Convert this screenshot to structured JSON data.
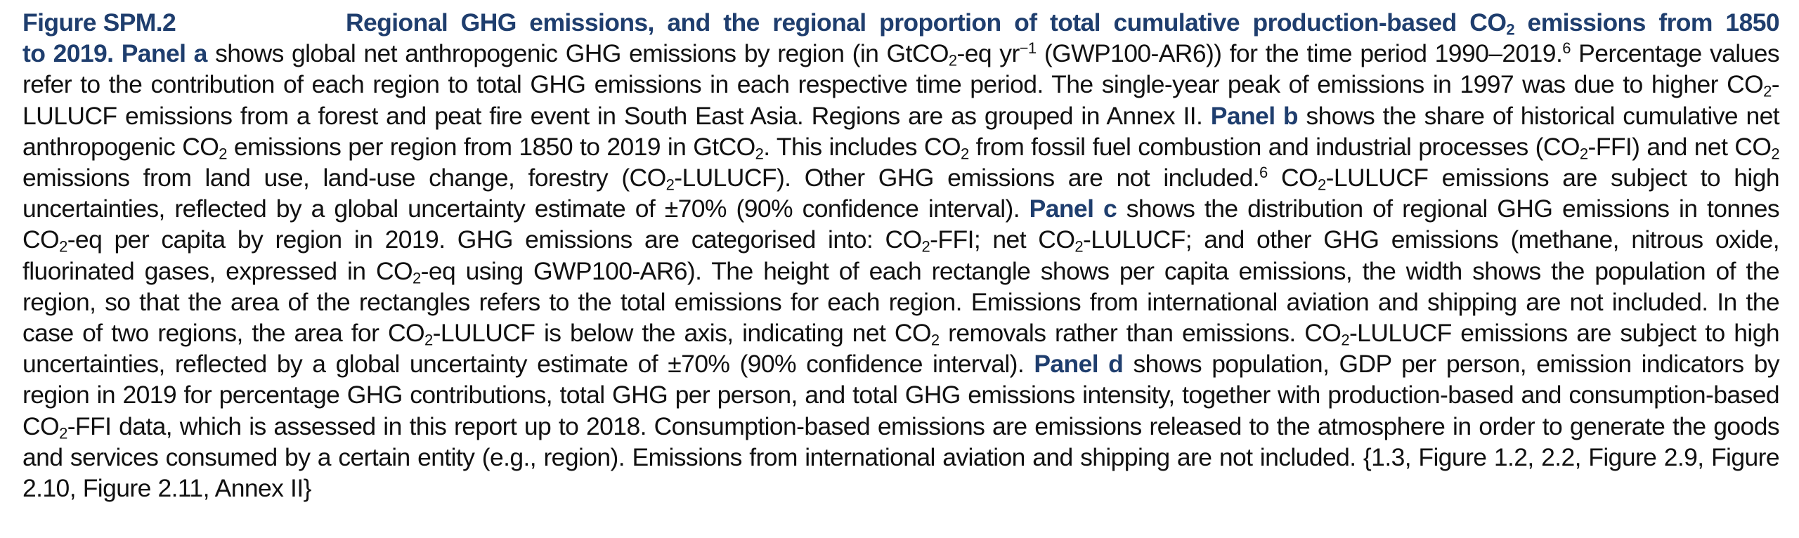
{
  "figure": {
    "label": "Figure SPM.2",
    "title": "Regional GHG emissions, and the regional proportion of total cumulative production-based CO₂ emissions from 1850 to 2019."
  },
  "caption": {
    "t1": "Regional GHG emissions, and the regional proportion of total cumulative production-based CO",
    "t2": "2",
    "t3": " emissions from 1850",
    "t4": "to 2019.",
    "pa_label": "Panel a",
    "pa1": " shows global net anthropogenic GHG emissions by region (in GtCO",
    "pa2": "2",
    "pa3": "-eq yr",
    "pa4": "−1",
    "pa5": " (GWP100-AR6)) for the time period 1990–2019.",
    "pa6": "6",
    "pa7": " Percentage values refer to the contribution of each region to total GHG emissions in each respective time period. The single-year peak of emissions in 1997 was due to higher CO",
    "pa8": "2",
    "pa9": "-LULUCF emissions from a forest and peat fire event in South East Asia. Regions are as grouped in Annex II. ",
    "pb_label": "Panel b",
    "pb1": " shows the share of historical cumulative net anthropogenic CO",
    "pb2": "2",
    "pb3": " emissions per region from 1850 to 2019 in GtCO",
    "pb4": "2",
    "pb5": ". This includes CO",
    "pb6": "2",
    "pb7": " from fossil fuel combustion and industrial processes (CO",
    "pb8": "2",
    "pb9": "-FFI) and net CO",
    "pb10": "2",
    "pb11": " emissions from land use, land-use change, forestry (CO",
    "pb12": "2",
    "pb13": "-LULUCF). Other GHG emissions are not included.",
    "pb14": "6",
    "pb15": " CO",
    "pb16": "2",
    "pb17": "-LULUCF emissions are subject to high uncertainties, reflected by a global uncertainty estimate of ±70% (90% confidence interval). ",
    "pc_label": "Panel c",
    "pc1": " shows the distribution of regional GHG emissions in tonnes CO",
    "pc2": "2",
    "pc3": "-eq per capita by region in 2019. GHG emissions are categorised into: CO",
    "pc4": "2",
    "pc5": "-FFI; net CO",
    "pc6": "2",
    "pc7": "-LULUCF; and other GHG emissions (methane, nitrous oxide, fluorinated gases, expressed in CO",
    "pc8": "2",
    "pc9": "-eq using GWP100-AR6). The height of each rectangle shows per capita emissions, the width shows the population of the region, so that the area of the rectangles refers to the total emissions for each region. Emissions from international aviation and shipping are not included. In the case of two regions, the area for CO",
    "pc10": "2",
    "pc11": "-LULUCF is below the axis, indicating net CO",
    "pc12": "2",
    "pc13": " removals rather than emissions. CO",
    "pc14": "2",
    "pc15": "-LULUCF emissions are subject to high uncertainties, reflected by a global uncertainty estimate of ±70% (90% confidence interval). ",
    "pd_label": "Panel d",
    "pd1": " shows population, GDP per person, emission indicators by region in 2019 for percentage GHG contributions, total GHG per person, and total GHG emissions intensity, together with production-based and consumption-based CO",
    "pd2": "2",
    "pd3": "-FFI data, which is assessed in this report up to 2018. Consumption-based emissions are emissions released to the atmosphere in order to generate the goods and services consumed by a certain entity (e.g., region). Emissions from international aviation and shipping are not included. {1.3, Figure 1.2, 2.2, Figure 2.9, Figure 2.10, Figure 2.11, Annex II}"
  },
  "colors": {
    "heading": "#1f3e6e",
    "body_text": "#111111",
    "background": "#ffffff"
  }
}
